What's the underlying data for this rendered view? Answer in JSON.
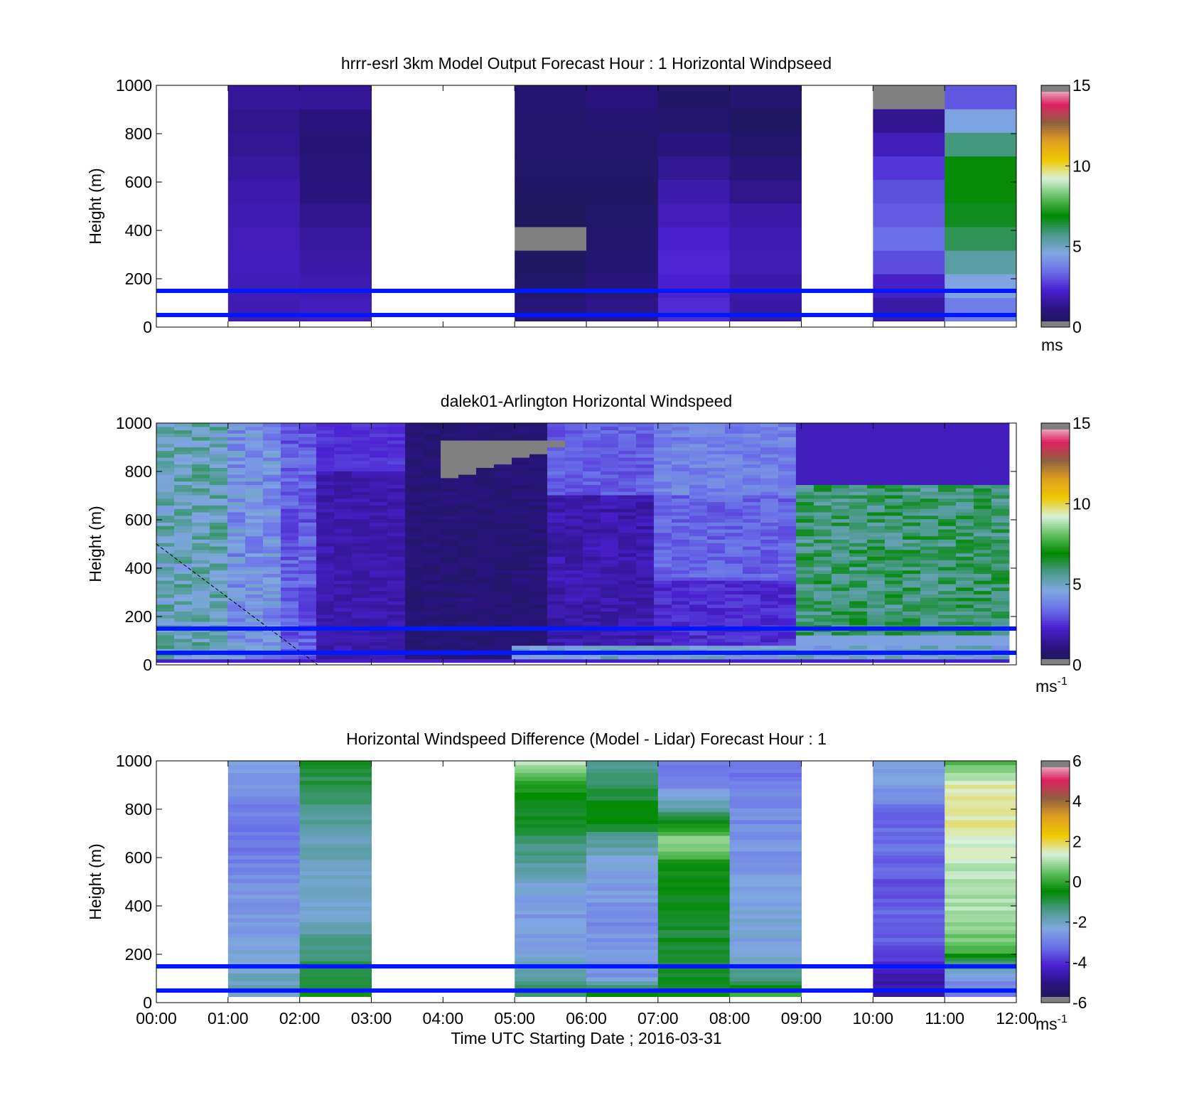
{
  "figure": {
    "xlabel": "Time UTC  Starting Date ; 2016-03-31",
    "x_ticks": [
      "00:00",
      "01:00",
      "02:00",
      "03:00",
      "04:00",
      "05:00",
      "06:00",
      "07:00",
      "08:00",
      "09:00",
      "10:00",
      "11:00",
      "12:00"
    ]
  },
  "chart_data": [
    {
      "type": "heatmap",
      "title": "hrrr-esrl 3km Model Output   Forecast Hour : 1 Horizontal Windpseed",
      "ylabel": "Height (m)",
      "y_ticks": [
        "0",
        "200",
        "400",
        "600",
        "800",
        "1000"
      ],
      "ylim": [
        0,
        1000
      ],
      "xlim_hours": [
        0,
        12
      ],
      "colorbar": {
        "label": "ms",
        "label_sup": "",
        "ticks": [
          "0",
          "5",
          "10",
          "15"
        ],
        "range": [
          0,
          15
        ],
        "stops": [
          "#1a1a50",
          "#2a1480",
          "#4a20d0",
          "#6a70e8",
          "#80a8e0",
          "#4a9a8a",
          "#008800",
          "#60c060",
          "#d8f0d8",
          "#f0c800",
          "#e0a020",
          "#906040",
          "#e02060",
          "#e8e8e8"
        ]
      },
      "reference_lines_m": [
        50,
        150
      ],
      "reference_line_color": "#0018ff",
      "data_hours": [
        1,
        2,
        5,
        6,
        7,
        8,
        10,
        11
      ],
      "missing_value_color": "#808080",
      "approx_speed_profile_ms": {
        "01:00": [
          1.8,
          1.9,
          2.0,
          2.0,
          1.9,
          1.8,
          1.6,
          1.4,
          1.3,
          1.7
        ],
        "02:00": [
          2.2,
          1.9,
          1.8,
          1.6,
          1.4,
          1.1,
          1.0,
          0.9,
          1.2,
          1.7
        ],
        "05:00": [
          1.2,
          0.8,
          0.5,
          0.4,
          0.3,
          0.5,
          0.6,
          0.7,
          0.8,
          0.9
        ],
        "06:00": [
          1.6,
          1.1,
          0.9,
          0.8,
          0.6,
          0.5,
          0.6,
          0.7,
          0.9,
          1.2
        ],
        "07:00": [
          3.0,
          2.2,
          2.4,
          2.4,
          2.0,
          1.8,
          1.4,
          1.0,
          0.6,
          0.4
        ],
        "08:00": [
          1.8,
          1.6,
          1.9,
          1.9,
          1.8,
          1.3,
          1.0,
          0.6,
          0.4,
          1.1
        ],
        "10:00": [
          1.5,
          1.8,
          2.5,
          3.6,
          3.2,
          3.0,
          2.6,
          1.8,
          1.2,
          0.0
        ],
        "11:00": [
          3.2,
          4.0,
          5.0,
          6.0,
          6.6,
          7.0,
          7.0,
          5.6,
          4.0,
          2.4
        ]
      }
    },
    {
      "type": "heatmap",
      "title": "dalek01-Arlington  Horizontal Windspeed",
      "ylabel": "Height (m)",
      "y_ticks": [
        "0",
        "200",
        "400",
        "600",
        "800",
        "1000"
      ],
      "ylim": [
        0,
        1000
      ],
      "xlim_hours": [
        0,
        12
      ],
      "colorbar": {
        "label": "ms",
        "label_sup": "-1",
        "ticks": [
          "0",
          "5",
          "10",
          "15"
        ],
        "range": [
          0,
          15
        ],
        "stops": [
          "#1a1a50",
          "#2a1480",
          "#4a20d0",
          "#6a70e8",
          "#80a8e0",
          "#4a9a8a",
          "#008800",
          "#60c060",
          "#d8f0d8",
          "#f0c800",
          "#e0a020",
          "#906040",
          "#e02060",
          "#e8e8e8"
        ]
      },
      "reference_lines_m": [
        50,
        150
      ],
      "reference_line_color": "#0018ff",
      "data_range_hours": [
        0,
        11.9
      ],
      "note_features": "dashed diagonal line from (00:00, 500 m) to (02:15, 0 m); grey missing-data patch near 04:00-05:30 at 700-950 m",
      "missing_value_color": "#808080"
    },
    {
      "type": "heatmap",
      "title": "Horizontal Windspeed Difference (Model - Lidar) Forecast Hour : 1",
      "ylabel": "Height (m)",
      "y_ticks": [
        "0",
        "200",
        "400",
        "600",
        "800",
        "1000"
      ],
      "ylim": [
        0,
        1000
      ],
      "xlim_hours": [
        0,
        12
      ],
      "colorbar": {
        "label": "ms",
        "label_sup": "-1",
        "ticks": [
          "-6",
          "-4",
          "-2",
          "0",
          "2",
          "4",
          "6"
        ],
        "range": [
          -6,
          6
        ],
        "stops": [
          "#1a1a50",
          "#2a1480",
          "#4a20d0",
          "#6a70e8",
          "#80a8e0",
          "#4a9a8a",
          "#008800",
          "#60c060",
          "#d8f0d8",
          "#f0c800",
          "#e0a020",
          "#906040",
          "#e02060",
          "#e8e8e8"
        ]
      },
      "reference_lines_m": [
        50,
        150
      ],
      "reference_line_color": "#0018ff",
      "data_hours": [
        1,
        2,
        5,
        6,
        7,
        8,
        10,
        11
      ],
      "approx_difference_profile_ms": {
        "01:00": [
          -1.8,
          -2.0,
          -2.3,
          -2.5,
          -2.6,
          -2.9,
          -3.1,
          -3.0,
          -2.7,
          -2.3
        ],
        "02:00": [
          -0.4,
          -0.8,
          -1.3,
          -1.9,
          -2.1,
          -2.0,
          -1.8,
          -1.5,
          -1.0,
          -0.7
        ],
        "05:00": [
          -0.8,
          -1.6,
          -2.3,
          -2.5,
          -2.4,
          -1.8,
          -1.1,
          -0.6,
          -0.3,
          1.2
        ],
        "06:00": [
          0.8,
          -2.6,
          -2.6,
          -2.7,
          -2.6,
          -2.4,
          -1.5,
          -0.4,
          -1.0,
          -1.7
        ],
        "07:00": [
          -0.4,
          -0.7,
          -0.8,
          -0.7,
          -0.6,
          -0.4,
          0.9,
          -1.2,
          -2.8,
          -3.1
        ],
        "08:00": [
          0.8,
          -1.4,
          -2.4,
          -2.2,
          -2.3,
          -2.6,
          -2.7,
          -2.8,
          -3.0,
          -3.2
        ],
        "10:00": [
          -5.0,
          -4.4,
          -3.6,
          -3.3,
          -3.6,
          -3.4,
          -3.2,
          -3.3,
          -2.6,
          -2.2
        ],
        "11:00": [
          -3.3,
          -2.5,
          0.3,
          1.0,
          1.1,
          1.2,
          1.3,
          1.7,
          1.6,
          0.2
        ]
      }
    }
  ]
}
